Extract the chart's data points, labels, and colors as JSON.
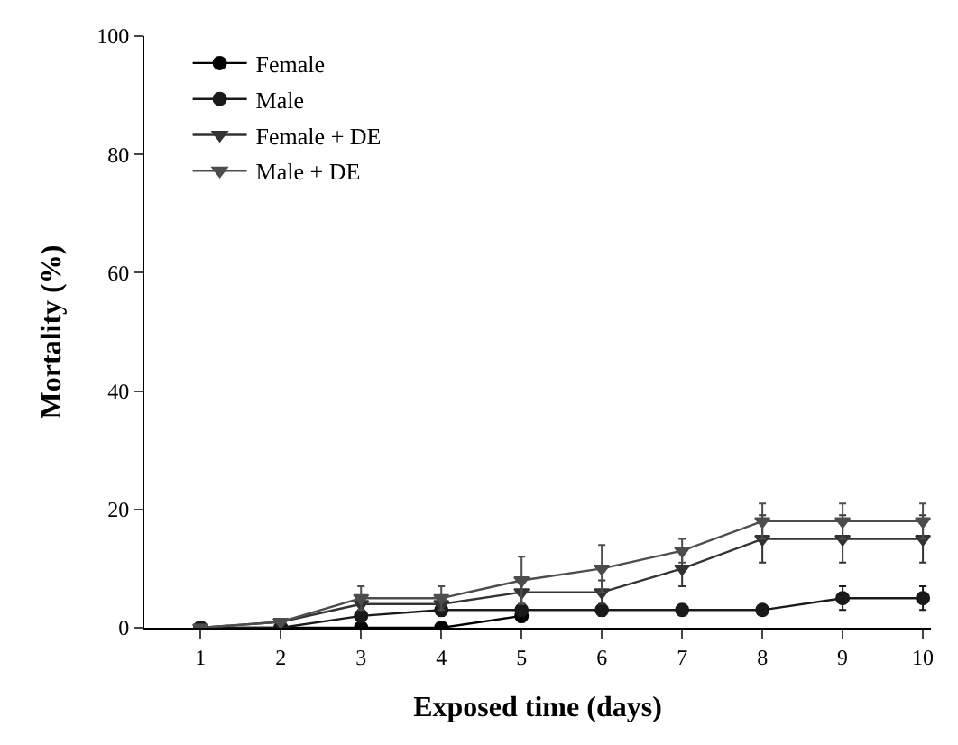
{
  "chart_data": {
    "type": "line",
    "xlabel": "Exposed time (days)",
    "ylabel": "Mortality (%)",
    "x": [
      1,
      2,
      3,
      4,
      5,
      6,
      7,
      8,
      9,
      10
    ],
    "series": [
      {
        "name": "Female",
        "color": "#000000",
        "marker": "circle",
        "values": [
          0,
          0,
          0,
          0,
          2,
          null,
          null,
          null,
          null,
          null
        ],
        "errors": [
          0,
          0,
          0,
          0,
          1,
          null,
          null,
          null,
          null,
          null
        ]
      },
      {
        "name": "Male",
        "color": "#1a1a1a",
        "marker": "circle",
        "values": [
          0,
          0,
          2,
          3,
          3,
          3,
          3,
          3,
          5,
          5
        ],
        "errors": [
          0,
          0,
          1,
          1,
          1,
          1,
          0,
          0,
          2,
          2
        ]
      },
      {
        "name": "Female + DE",
        "color": "#333333",
        "marker": "triangle",
        "values": [
          0,
          1,
          4,
          4,
          6,
          6,
          10,
          15,
          15,
          15
        ],
        "errors": [
          0,
          0,
          0,
          0,
          2,
          2,
          3,
          4,
          4,
          4
        ]
      },
      {
        "name": "Male + DE",
        "color": "#4d4d4d",
        "marker": "triangle",
        "values": [
          0,
          1,
          5,
          5,
          8,
          10,
          13,
          18,
          18,
          18
        ],
        "errors": [
          0,
          0,
          2,
          2,
          4,
          4,
          2,
          3,
          3,
          3
        ]
      }
    ],
    "xlim": [
      0.3,
      10.1
    ],
    "xticks": [
      1,
      2,
      3,
      4,
      5,
      6,
      7,
      8,
      9,
      10
    ],
    "ylim": [
      0,
      100
    ],
    "yticks": [
      0,
      20,
      40,
      60,
      80,
      100
    ],
    "legend": "top left"
  }
}
